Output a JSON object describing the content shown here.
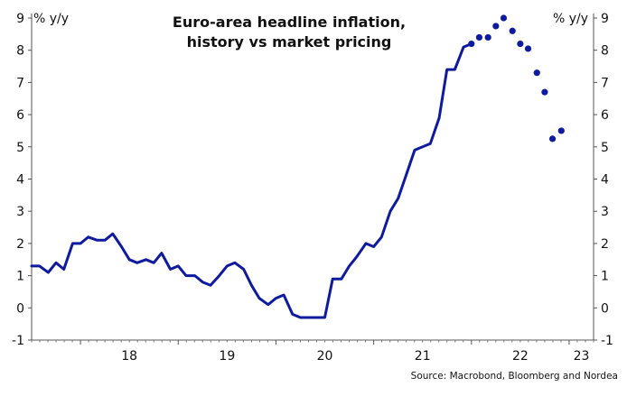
{
  "chart_data": {
    "type": "line",
    "title_line1": "Euro-area headline inflation,",
    "title_line2": "history vs market pricing",
    "ylabel_left": "% y/y",
    "ylabel_right": "% y/y",
    "source": "Source: Macrobond, Bloomberg and Nordea",
    "ylim": [
      -1,
      9
    ],
    "yticks": [
      -1,
      0,
      1,
      2,
      3,
      4,
      5,
      6,
      7,
      8,
      9
    ],
    "xlim": [
      2017.5,
      2023.25
    ],
    "xtick_labels": [
      {
        "x": 2018,
        "label": "18"
      },
      {
        "x": 2019,
        "label": "19"
      },
      {
        "x": 2020,
        "label": "20"
      },
      {
        "x": 2021,
        "label": "21"
      },
      {
        "x": 2022,
        "label": "22"
      },
      {
        "x": 2023,
        "label": "23"
      }
    ],
    "grid": false,
    "line_color": "#0f1b9e",
    "series": [
      {
        "style": "line",
        "x": [
          2017.5,
          2017.58,
          2017.67,
          2017.75,
          2017.83,
          2017.92,
          2018.0,
          2018.08,
          2018.17,
          2018.25,
          2018.33,
          2018.42,
          2018.5,
          2018.58,
          2018.67,
          2018.75,
          2018.83,
          2018.92,
          2019.0,
          2019.08,
          2019.17,
          2019.25,
          2019.33,
          2019.42,
          2019.5,
          2019.58,
          2019.67,
          2019.75,
          2019.83,
          2019.92,
          2020.0,
          2020.08,
          2020.17,
          2020.25,
          2020.33,
          2020.42,
          2020.5,
          2020.58,
          2020.67,
          2020.75,
          2020.83,
          2020.92,
          2021.0,
          2021.08,
          2021.17,
          2021.25,
          2021.33,
          2021.42,
          2021.5,
          2021.58,
          2021.67,
          2021.75,
          2021.83,
          2021.92,
          2022.0
        ],
        "y": [
          1.3,
          1.3,
          1.1,
          1.4,
          1.2,
          2.0,
          2.0,
          2.2,
          2.1,
          2.1,
          2.3,
          1.9,
          1.5,
          1.4,
          1.5,
          1.4,
          1.7,
          1.2,
          1.3,
          1.0,
          1.0,
          0.8,
          0.7,
          1.0,
          1.3,
          1.4,
          1.2,
          0.7,
          0.3,
          0.1,
          0.3,
          0.4,
          -0.2,
          -0.3,
          -0.3,
          -0.3,
          -0.3,
          0.9,
          0.9,
          1.3,
          1.6,
          2.0,
          1.9,
          2.2,
          3.0,
          3.4,
          4.1,
          4.9,
          5.0,
          5.1,
          5.9,
          7.4,
          7.4,
          8.1,
          8.2
        ]
      },
      {
        "style": "dots",
        "x": [
          2022.0,
          2022.08,
          2022.17,
          2022.25,
          2022.33,
          2022.42,
          2022.5,
          2022.58,
          2022.67,
          2022.75,
          2022.83,
          2022.92
        ],
        "y": [
          8.2,
          8.4,
          8.4,
          8.75,
          9.0,
          8.6,
          8.2,
          8.05,
          7.3,
          6.7,
          5.25,
          5.5
        ]
      }
    ]
  }
}
